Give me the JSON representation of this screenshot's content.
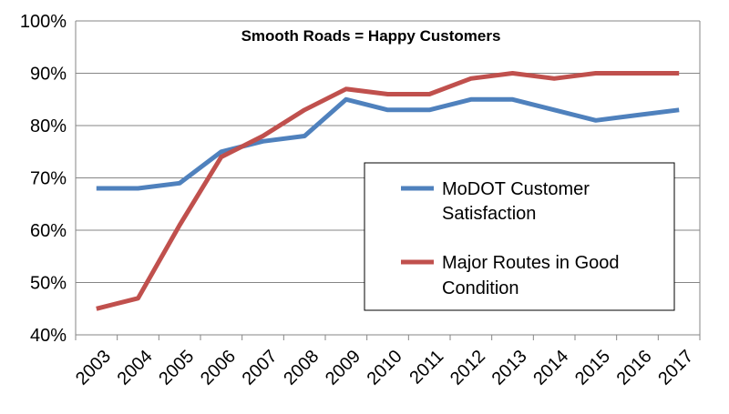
{
  "chart_data": {
    "type": "line",
    "title": "Smooth Roads = Happy Customers",
    "xlabel": "",
    "ylabel": "",
    "categories": [
      "2003",
      "2004",
      "2005",
      "2006",
      "2007",
      "2008",
      "2009",
      "2010",
      "2011",
      "2012",
      "2013",
      "2014",
      "2015",
      "2016",
      "2017"
    ],
    "ylim": [
      40,
      100
    ],
    "yticks": [
      40,
      50,
      60,
      70,
      80,
      90,
      100
    ],
    "ytick_labels": [
      "40%",
      "50%",
      "60%",
      "70%",
      "80%",
      "90%",
      "100%"
    ],
    "grid": true,
    "legend_position": "center-right",
    "series": [
      {
        "name": "MoDOT Customer Satisfaction",
        "legend_lines": [
          "MoDOT Customer",
          "Satisfaction"
        ],
        "color": "#4F81BD",
        "values": [
          68,
          68,
          69,
          75,
          77,
          78,
          85,
          83,
          83,
          85,
          85,
          83,
          81,
          82,
          83
        ]
      },
      {
        "name": "Major Routes in Good Condition",
        "legend_lines": [
          "Major Routes in Good",
          "Condition"
        ],
        "color": "#C0504D",
        "values": [
          45,
          47,
          61,
          74,
          78,
          83,
          87,
          86,
          86,
          89,
          90,
          89,
          90,
          90,
          90
        ]
      }
    ]
  }
}
